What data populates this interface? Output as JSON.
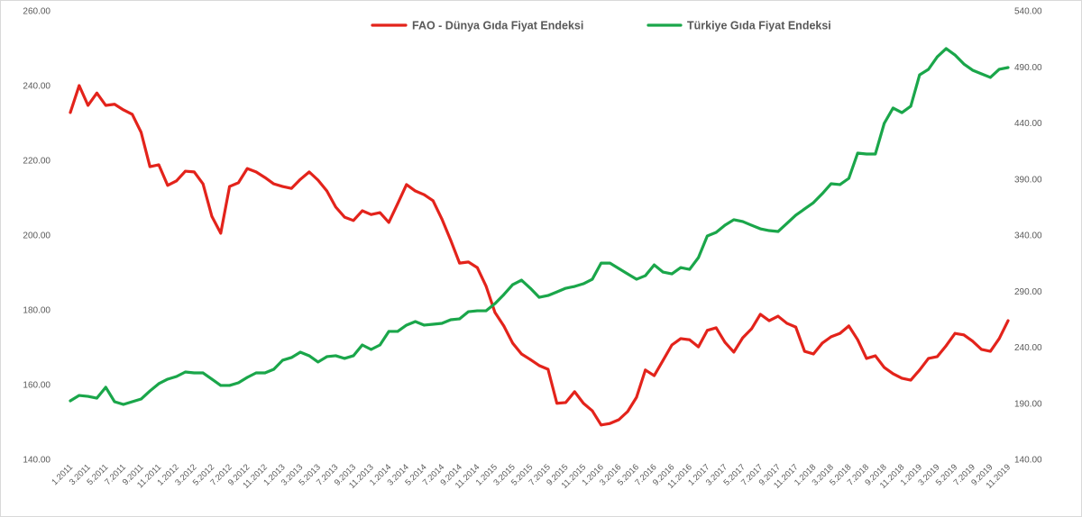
{
  "chart_data": {
    "type": "line",
    "grid": false,
    "legend_position": "top-center",
    "x_tick_labels": [
      "1.2011",
      "3.2011",
      "5.2011",
      "7.2011",
      "9.2011",
      "11.2011",
      "1.2012",
      "3.2012",
      "5.2012",
      "7.2012",
      "9.2012",
      "11.2012",
      "1.2013",
      "3.2013",
      "5.2013",
      "7.2013",
      "9.2013",
      "11.2013",
      "1.2014",
      "3.2014",
      "5.2014",
      "7.2014",
      "9.2014",
      "11.2014",
      "1.2015",
      "3.2015",
      "5.2015",
      "7.2015",
      "9.2015",
      "11.2015",
      "1.2016",
      "3.2016",
      "5.2016",
      "7.2016",
      "9.2016",
      "11.2016",
      "1.2017",
      "3.2017",
      "5.2017",
      "7.2017",
      "9.2017",
      "11.2017",
      "1.2018",
      "3.2018",
      "5.2018",
      "7.2018",
      "9.2018",
      "11.2018",
      "1.2019",
      "3.2019",
      "5.2019",
      "7.2019",
      "9.2019",
      "11.2019"
    ],
    "y_left": {
      "range": [
        140,
        260
      ],
      "tick_labels": [
        "260.00",
        "240.00",
        "220.00",
        "200.00",
        "180.00",
        "160.00",
        "140.00"
      ]
    },
    "y_right": {
      "range": [
        140,
        540
      ],
      "tick_labels": [
        "540.00",
        "490.00",
        "440.00",
        "390.00",
        "340.00",
        "290.00",
        "240.00",
        "190.00",
        "140.00"
      ]
    },
    "series": [
      {
        "name": "FAO - Dünya Gıda Fiyat Endeksi",
        "axis": "left",
        "color": "#e3231b",
        "values": [
          232.8,
          240.0,
          234.7,
          238.0,
          234.7,
          235.0,
          233.5,
          232.3,
          227.5,
          218.3,
          218.8,
          213.3,
          214.5,
          217.1,
          216.9,
          213.7,
          205.0,
          200.5,
          213.0,
          214.0,
          217.8,
          216.9,
          215.4,
          213.7,
          213.0,
          212.5,
          214.9,
          216.9,
          214.7,
          211.8,
          207.5,
          204.8,
          203.9,
          206.5,
          205.5,
          206.0,
          203.4,
          208.4,
          213.5,
          211.8,
          210.8,
          209.2,
          204.3,
          198.6,
          192.5,
          192.8,
          191.3,
          186.3,
          179.3,
          175.7,
          171.1,
          168.2,
          166.7,
          165.1,
          164.1,
          155.0,
          155.2,
          158.1,
          155.0,
          153.0,
          149.2,
          149.6,
          150.6,
          152.8,
          156.6,
          163.9,
          162.4,
          166.5,
          170.6,
          172.3,
          172.0,
          170.1,
          174.5,
          175.2,
          171.3,
          168.7,
          172.5,
          174.9,
          178.8,
          177.1,
          178.3,
          176.4,
          175.4,
          168.9,
          168.2,
          171.1,
          172.8,
          173.7,
          175.7,
          172.0,
          167.0,
          167.7,
          164.6,
          162.9,
          161.7,
          161.2,
          163.9,
          167.0,
          167.5,
          170.4,
          173.7,
          173.3,
          171.6,
          169.4,
          168.9,
          172.3,
          177.1
        ]
      },
      {
        "name": "Türkiye Gıda Fiyat Endeksi",
        "axis": "right",
        "color": "#1aa64a",
        "values": [
          192.2,
          197.0,
          196.2,
          194.6,
          204.3,
          191.4,
          189.0,
          191.4,
          193.8,
          201.0,
          207.5,
          211.5,
          213.9,
          217.9,
          217.1,
          217.1,
          211.5,
          205.9,
          205.9,
          208.3,
          213.1,
          217.1,
          217.1,
          220.3,
          228.4,
          230.8,
          235.6,
          232.4,
          226.8,
          231.6,
          232.4,
          230.0,
          232.4,
          242.0,
          238.0,
          242.0,
          254.1,
          254.1,
          259.7,
          262.9,
          259.7,
          260.5,
          261.3,
          264.5,
          265.3,
          271.7,
          272.5,
          272.5,
          278.9,
          286.9,
          295.8,
          299.8,
          292.6,
          284.5,
          286.1,
          289.3,
          292.6,
          294.2,
          296.6,
          300.6,
          315.0,
          315.0,
          310.2,
          305.4,
          300.6,
          303.8,
          313.4,
          307.0,
          305.4,
          311.0,
          309.4,
          319.9,
          339.2,
          342.4,
          348.8,
          353.7,
          352.1,
          348.8,
          345.6,
          344.0,
          343.2,
          350.4,
          357.7,
          363.3,
          368.9,
          376.9,
          385.8,
          385.0,
          390.6,
          413.1,
          412.3,
          412.3,
          439.6,
          453.3,
          449.2,
          454.9,
          482.9,
          487.8,
          499.0,
          506.3,
          500.6,
          492.6,
          487.0,
          483.8,
          480.6,
          487.8,
          489.4
        ]
      }
    ]
  }
}
